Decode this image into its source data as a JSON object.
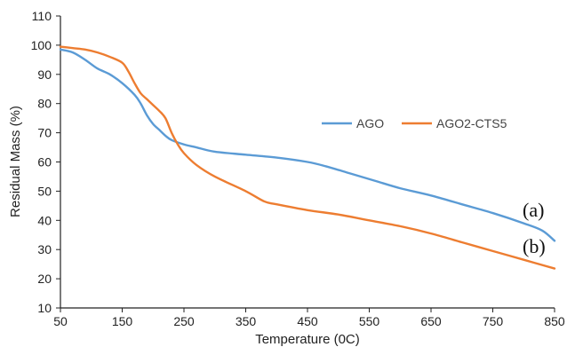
{
  "chart_data": {
    "type": "line",
    "title": "",
    "xlabel": "Temperature (0C)",
    "ylabel": "Residual Mass (%)",
    "xlim": [
      50,
      850
    ],
    "ylim": [
      10,
      110
    ],
    "xticks": [
      50,
      150,
      250,
      350,
      450,
      550,
      650,
      750,
      850
    ],
    "yticks": [
      10,
      20,
      30,
      40,
      50,
      60,
      70,
      80,
      90,
      100,
      110
    ],
    "grid": false,
    "legend_position": "right",
    "series": [
      {
        "name": "AGO",
        "color": "#5B9BD5",
        "x": [
          50,
          70,
          90,
          110,
          130,
          150,
          170,
          180,
          190,
          200,
          210,
          220,
          230,
          250,
          270,
          300,
          350,
          400,
          450,
          480,
          520,
          560,
          600,
          650,
          700,
          750,
          800,
          830,
          850
        ],
        "y": [
          98.5,
          97.5,
          95,
          92,
          90,
          87,
          83,
          80,
          76,
          73,
          71,
          69,
          67.5,
          66,
          65,
          63.5,
          62.5,
          61.5,
          60,
          58.5,
          56,
          53.5,
          51,
          48.5,
          45.5,
          42.5,
          39,
          36.5,
          33
        ]
      },
      {
        "name": "AGO2-CTS5",
        "color": "#ED7D31",
        "x": [
          50,
          70,
          90,
          110,
          130,
          150,
          160,
          170,
          180,
          190,
          200,
          210,
          220,
          230,
          240,
          250,
          270,
          300,
          350,
          380,
          400,
          450,
          500,
          550,
          600,
          650,
          700,
          750,
          800,
          850
        ],
        "y": [
          99.5,
          99,
          98.5,
          97.5,
          96,
          94,
          91,
          87,
          83.5,
          81.5,
          79.5,
          77.5,
          75,
          70,
          66,
          63,
          59,
          55,
          50,
          46.5,
          45.5,
          43.5,
          42,
          40,
          38,
          35.5,
          32.5,
          29.5,
          26.5,
          23.5
        ]
      }
    ],
    "annotations": [
      {
        "text": "(a)",
        "series": "AGO"
      },
      {
        "text": "(b)",
        "series": "AGO2-CTS5"
      }
    ]
  }
}
